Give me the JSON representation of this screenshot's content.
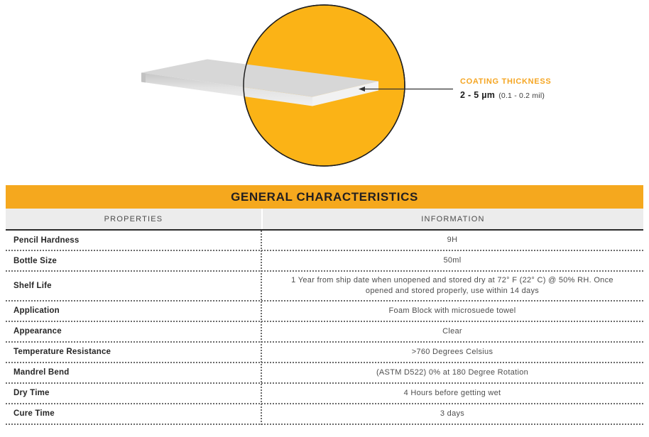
{
  "illustration": {
    "callout": {
      "title": "COATING THICKNESS",
      "value": "2 - 5 µm",
      "note": "(0.1 - 0.2 mil)"
    }
  },
  "table": {
    "title": "GENERAL CHARACTERISTICS",
    "columns": [
      "PROPERTIES",
      "INFORMATION"
    ],
    "rows": [
      {
        "property": "Pencil Hardness",
        "information": "9H"
      },
      {
        "property": "Bottle Size",
        "information": "50ml"
      },
      {
        "property": "Shelf Life",
        "information": "1 Year from ship date when unopened and stored dry at 72° F (22° C) @ 50% RH. Once opened and stored properly, use within 14 days"
      },
      {
        "property": "Application",
        "information": "Foam Block with microsuede towel"
      },
      {
        "property": "Appearance",
        "information": "Clear"
      },
      {
        "property": "Temperature Resistance",
        "information": ">760 Degrees Celsius"
      },
      {
        "property": "Mandrel Bend",
        "information": "(ASTM D522) 0% at 180 Degree Rotation"
      },
      {
        "property": "Dry Time",
        "information": "4 Hours before getting wet"
      },
      {
        "property": "Cure Time",
        "information": "3 days"
      }
    ]
  },
  "colors": {
    "circle_yellow": "#FBB316",
    "banner_yellow": "#F5A81E",
    "callout_orange": "#F5A623",
    "subheader_bg": "#ECECEC",
    "slab_top_gray": "#D7D7D7",
    "slab_edge_light": "#F2F2F2"
  }
}
